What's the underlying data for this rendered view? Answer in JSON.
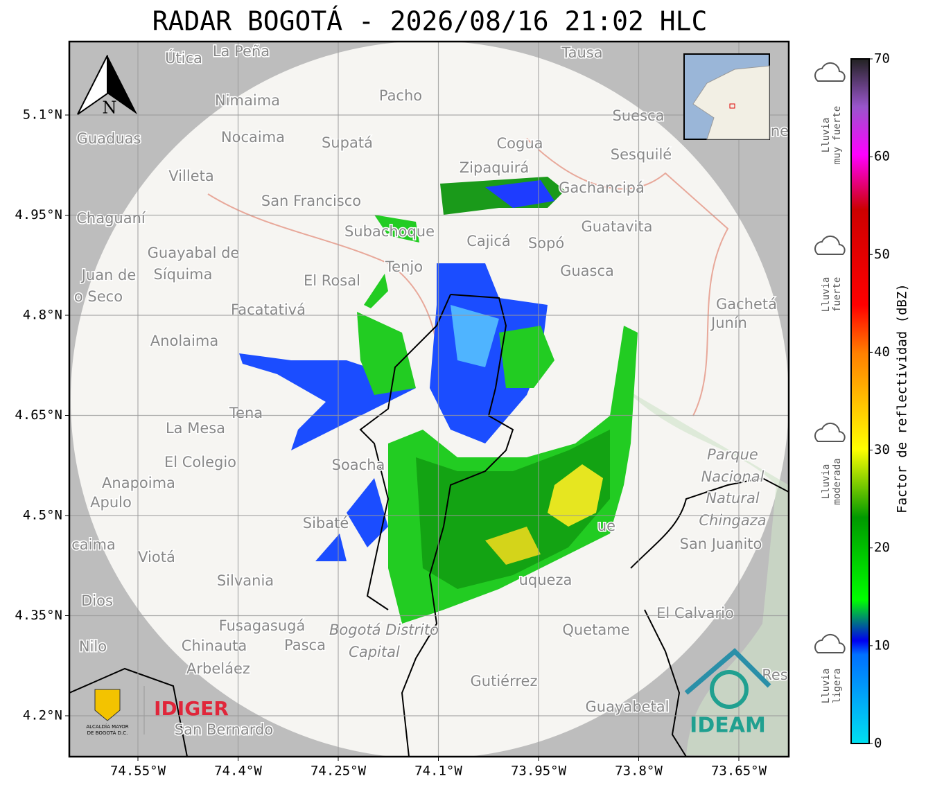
{
  "title": "RADAR BOGOTÁ - 2026/08/16 21:02 HLC",
  "map": {
    "north_label": "N",
    "places": [
      "Útica",
      "La Peña",
      "Tausa",
      "Pacho",
      "Nimaima",
      "Guaduas",
      "Nocaima",
      "Supatá",
      "Cogua",
      "Suesca",
      "Sesquilé",
      "Zipaquirá",
      "Villeta",
      "Gachancipá",
      "San Francisco",
      "Chaguaní",
      "Guatavita",
      "Subachoque",
      "Cajicá",
      "Sopó",
      "Guayabal de",
      "Síquima",
      "Tenjo",
      "Guasca",
      "Juan de",
      "El Rosal",
      "o Seco",
      "Facatativá",
      "Gachetá",
      "Junín",
      "Anolaima",
      "Tena",
      "La Mesa",
      "El Colegio",
      "Soacha",
      "Parque",
      "Nacional",
      "Natural",
      "Chingaza",
      "Anapoima",
      "Apulo",
      "Sibaté",
      "San Juanito",
      "caima",
      "Viotá",
      "Silvania",
      "Dios",
      "El Calvario",
      "Fusagasugá",
      "Bogotá Distrito",
      "Capital",
      "Quetame",
      "Nilo",
      "Chinauta",
      "Pasca",
      "Arbeláez",
      "Gutiérrez",
      "Res",
      "Guayabetal",
      "San Bernardo",
      "uqueza",
      "ue",
      "ne"
    ]
  },
  "axes": {
    "lat_ticks": [
      {
        "value": 5.1,
        "label": "5.1°N"
      },
      {
        "value": 4.95,
        "label": "4.95°N"
      },
      {
        "value": 4.8,
        "label": "4.8°N"
      },
      {
        "value": 4.65,
        "label": "4.65°N"
      },
      {
        "value": 4.5,
        "label": "4.5°N"
      },
      {
        "value": 4.35,
        "label": "4.35°N"
      },
      {
        "value": 4.2,
        "label": "4.2°N"
      }
    ],
    "lon_ticks": [
      {
        "value": -74.55,
        "label": "74.55°W"
      },
      {
        "value": -74.4,
        "label": "74.4°W"
      },
      {
        "value": -74.25,
        "label": "74.25°W"
      },
      {
        "value": -74.1,
        "label": "74.1°W"
      },
      {
        "value": -73.95,
        "label": "73.95°W"
      },
      {
        "value": -73.8,
        "label": "73.8°W"
      },
      {
        "value": -73.65,
        "label": "73.65°W"
      }
    ]
  },
  "colorbar": {
    "label": "Factor de reflectividad (dBZ)",
    "lim": [
      0,
      70
    ],
    "ticks": [
      0,
      10,
      20,
      30,
      40,
      50,
      60,
      70
    ]
  },
  "rain_legend": [
    [
      "Lluvia",
      "muy fuerte"
    ],
    [
      "Lluvia",
      "fuerte"
    ],
    [
      "Lluvia",
      "moderada"
    ],
    [
      "Lluvia",
      "ligera"
    ]
  ],
  "logos": {
    "alcaldia": [
      "ALCALDÍA MAYOR",
      "DE BOGOTÁ D.C."
    ],
    "idiger": "IDIGER",
    "ideam": "IDEAM"
  }
}
